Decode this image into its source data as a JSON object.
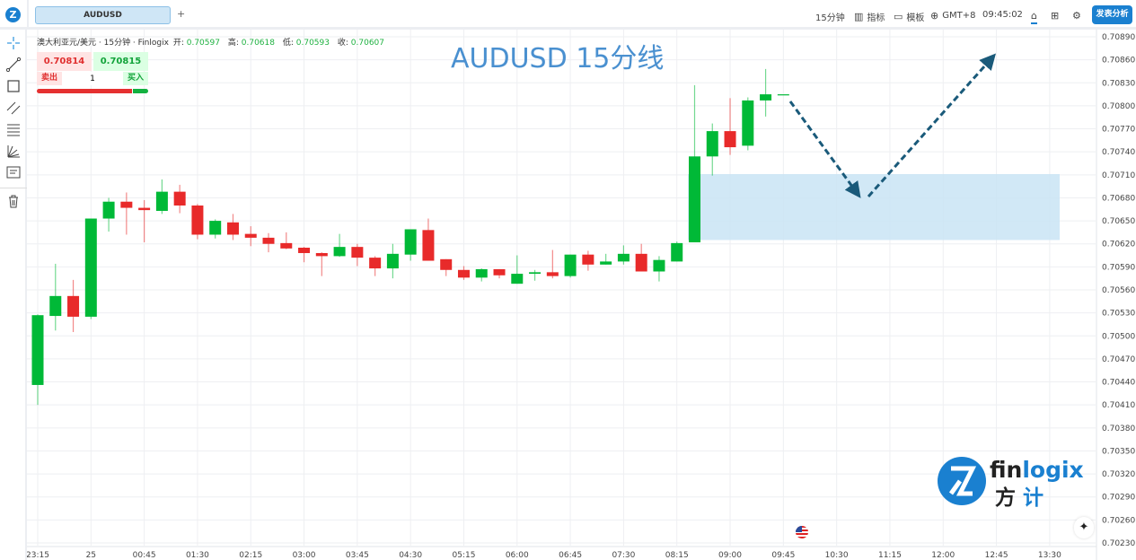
{
  "topbar": {
    "tab_label": "AUDUSD",
    "add_tab": "+",
    "interval": "15分钟",
    "indicators": "指标",
    "templates": "模板",
    "timezone": "GMT+8",
    "clock": "09:45:02",
    "publish": "发表分析"
  },
  "legend": {
    "symbol": "澳大利亚元/美元 · 15分钟 · Finlogix",
    "open_label": "开:",
    "open": "0.70597",
    "high_label": "高:",
    "high": "0.70618",
    "low_label": "低:",
    "low": "0.70593",
    "close_label": "收:",
    "close": "0.70607"
  },
  "trade": {
    "bid": "0.70814",
    "ask": "0.70815",
    "sell": "卖出",
    "buy": "买入",
    "quantity": "1",
    "sell_share": 0.86
  },
  "annotation_title": "AUDUSD 15分线",
  "watermark": {
    "text": "finlogix",
    "cn": "方计"
  },
  "colors": {
    "up": "#00b937",
    "down": "#e82a2a",
    "accent": "#1a80d0",
    "zone": "#c9e4f5",
    "arrow": "#1a5a7a"
  },
  "toolbar_icons": [
    "crosshair-icon",
    "trend-line-icon",
    "rectangle-icon",
    "parallel-channel-icon",
    "fib-retracement-icon",
    "gann-fan-icon",
    "text-note-icon",
    "trash-icon"
  ],
  "chart_data": {
    "type": "candlestick",
    "interval": "15m",
    "x_tick_labels": [
      "23:15",
      "25",
      "00:45",
      "01:30",
      "02:15",
      "03:00",
      "03:45",
      "04:30",
      "05:15",
      "06:00",
      "06:45",
      "07:30",
      "08:15",
      "09:00",
      "09:45",
      "10:30",
      "11:15",
      "12:00",
      "12:45",
      "13:30"
    ],
    "y_tick_labels": [
      "0.70890",
      "0.70860",
      "0.70830",
      "0.70800",
      "0.70770",
      "0.70740",
      "0.70710",
      "0.70680",
      "0.70650",
      "0.70620",
      "0.70590",
      "0.70560",
      "0.70530",
      "0.70500",
      "0.70470",
      "0.70440",
      "0.70410",
      "0.70380",
      "0.70350",
      "0.70320",
      "0.70290",
      "0.70260",
      "0.70230"
    ],
    "ylim": [
      0.7023,
      0.7089
    ],
    "grid": true,
    "ohlc": [
      [
        0.70436,
        0.70528,
        0.7041,
        0.70527
      ],
      [
        0.70526,
        0.70594,
        0.70507,
        0.70552
      ],
      [
        0.70552,
        0.70573,
        0.70505,
        0.70525
      ],
      [
        0.70525,
        0.70653,
        0.70522,
        0.70653
      ],
      [
        0.70653,
        0.7068,
        0.70636,
        0.70675
      ],
      [
        0.70675,
        0.70687,
        0.70632,
        0.70667
      ],
      [
        0.70667,
        0.70677,
        0.70622,
        0.70664
      ],
      [
        0.70663,
        0.70704,
        0.70659,
        0.70688
      ],
      [
        0.70688,
        0.70697,
        0.7066,
        0.7067
      ],
      [
        0.7067,
        0.70672,
        0.70626,
        0.70632
      ],
      [
        0.70632,
        0.70652,
        0.70627,
        0.7065
      ],
      [
        0.70648,
        0.70659,
        0.70625,
        0.70632
      ],
      [
        0.70633,
        0.70643,
        0.70617,
        0.70628
      ],
      [
        0.70628,
        0.70634,
        0.70609,
        0.7062
      ],
      [
        0.70621,
        0.70635,
        0.70613,
        0.70614
      ],
      [
        0.70615,
        0.70616,
        0.70596,
        0.70608
      ],
      [
        0.70608,
        0.70609,
        0.70578,
        0.70604
      ],
      [
        0.70604,
        0.70633,
        0.70603,
        0.70616
      ],
      [
        0.70616,
        0.7062,
        0.70591,
        0.70602
      ],
      [
        0.70602,
        0.70604,
        0.70578,
        0.70588
      ],
      [
        0.70588,
        0.7062,
        0.70575,
        0.70607
      ],
      [
        0.70606,
        0.70639,
        0.70598,
        0.70639
      ],
      [
        0.70638,
        0.70653,
        0.70598,
        0.70598
      ],
      [
        0.706,
        0.706,
        0.70578,
        0.70586
      ],
      [
        0.70586,
        0.70591,
        0.70573,
        0.70576
      ],
      [
        0.70576,
        0.70588,
        0.70571,
        0.70587
      ],
      [
        0.70587,
        0.70587,
        0.70575,
        0.70579
      ],
      [
        0.70568,
        0.70605,
        0.70568,
        0.70581
      ],
      [
        0.70581,
        0.70586,
        0.70572,
        0.70583
      ],
      [
        0.70583,
        0.70612,
        0.70575,
        0.70578
      ],
      [
        0.70578,
        0.70606,
        0.70576,
        0.70606
      ],
      [
        0.70606,
        0.70611,
        0.70585,
        0.70593
      ],
      [
        0.70593,
        0.70607,
        0.70593,
        0.70597
      ],
      [
        0.70597,
        0.70618,
        0.70593,
        0.70607
      ],
      [
        0.70607,
        0.7062,
        0.70584,
        0.70584
      ],
      [
        0.70584,
        0.70604,
        0.70571,
        0.70599
      ],
      [
        0.70597,
        0.70623,
        0.70597,
        0.70621
      ],
      [
        0.70622,
        0.70827,
        0.70622,
        0.70734
      ],
      [
        0.70734,
        0.70777,
        0.70709,
        0.70767
      ],
      [
        0.70767,
        0.7081,
        0.70736,
        0.70746
      ],
      [
        0.70748,
        0.70811,
        0.70742,
        0.70807
      ],
      [
        0.70807,
        0.70848,
        0.70786,
        0.70815
      ],
      [
        0.70815,
        0.70815,
        0.70815,
        0.70815
      ]
    ],
    "zone": {
      "top": 0.70711,
      "bottom": 0.70625
    }
  }
}
